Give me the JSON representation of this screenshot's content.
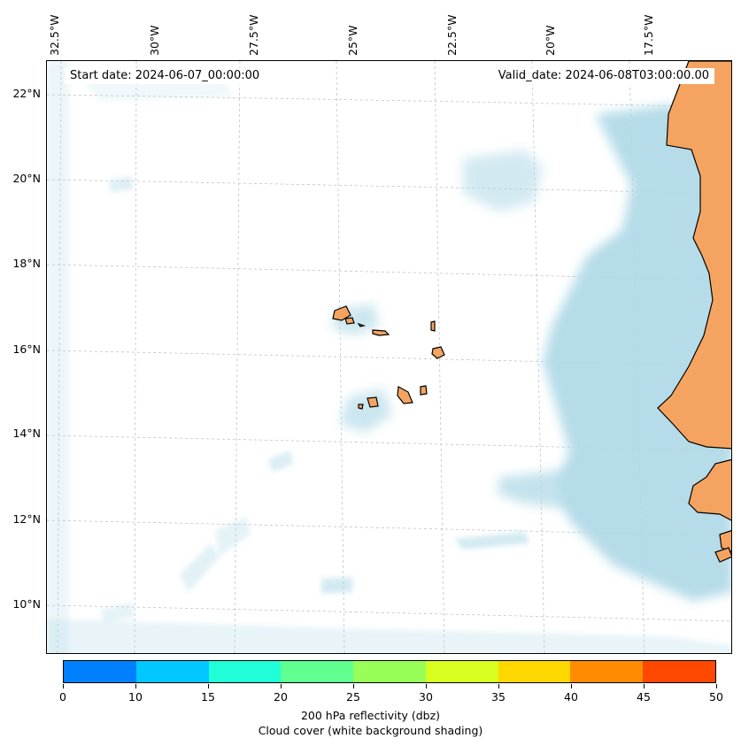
{
  "map": {
    "start_date": "Start date: 2024-06-07_00:00:00",
    "valid_date": "Valid_date: 2024-06-08T03:00:00.00",
    "lon_labels": [
      "32.5°W",
      "30°W",
      "27.5°W",
      "25°W",
      "22.5°W",
      "20°W",
      "17.5°W"
    ],
    "lat_labels": [
      "22°N",
      "20°N",
      "18°N",
      "16°N",
      "14°N",
      "12°N",
      "10°N"
    ],
    "colors": {
      "land": "#f4a460",
      "cloud": "#add8e6",
      "coastline": "#000000",
      "gridline": "#bbbbbb"
    }
  },
  "colorbar": {
    "colors": [
      "#0080ff",
      "#00c8ff",
      "#20ffd8",
      "#60ff90",
      "#98ff58",
      "#d8ff20",
      "#ffd800",
      "#ff8c00",
      "#ff4800"
    ],
    "ticks": [
      "0",
      "10",
      "15",
      "20",
      "25",
      "30",
      "35",
      "40",
      "45",
      "50"
    ],
    "label_line1": "200 hPa reflectivity (dbz)",
    "label_line2": "Cloud cover (white background shading)"
  }
}
